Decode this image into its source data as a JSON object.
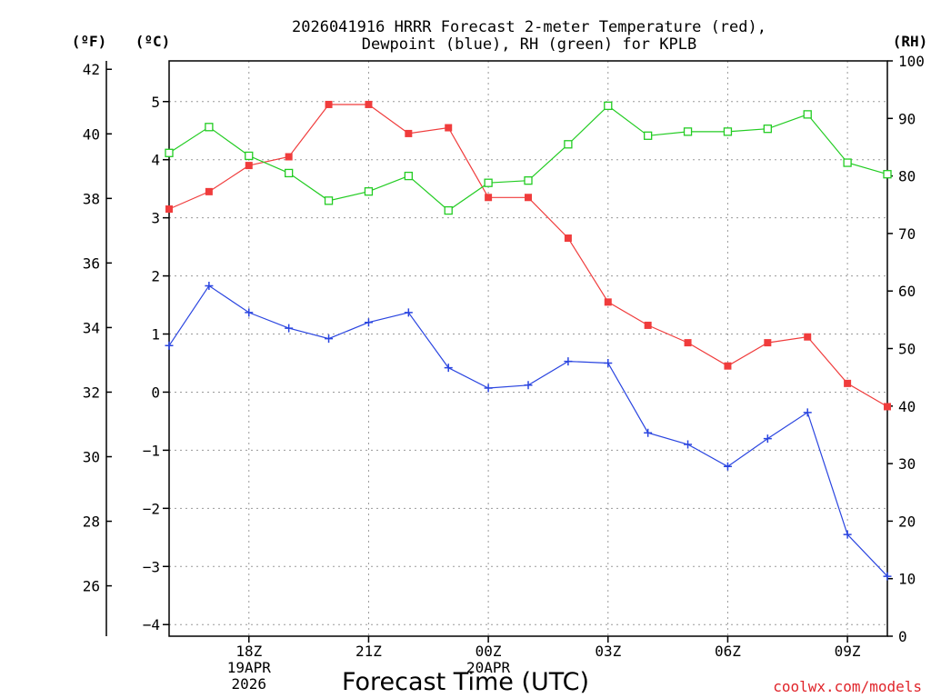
{
  "chart_data": {
    "type": "line",
    "title_line1": "2026041916 HRRR Forecast 2-meter Temperature (red),",
    "title_line2": "Dewpoint (blue), RH (green) for KPLB",
    "xlabel": "Forecast Time (UTC)",
    "credit": "coolwx.com/models",
    "left_unit_f": "(ºF)",
    "left_unit_c": "(ºC)",
    "right_unit": "(RH)",
    "x_hours": [
      16,
      17,
      18,
      19,
      20,
      21,
      22,
      23,
      24,
      25,
      26,
      27,
      28,
      29,
      30,
      31,
      32,
      33,
      34
    ],
    "x_ticks": [
      {
        "hour": 18,
        "label": "18Z",
        "date": "19APR",
        "year": "2026"
      },
      {
        "hour": 21,
        "label": "21Z",
        "date": "",
        "year": ""
      },
      {
        "hour": 24,
        "label": "00Z",
        "date": "20APR",
        "year": ""
      },
      {
        "hour": 27,
        "label": "03Z",
        "date": "",
        "year": ""
      },
      {
        "hour": 30,
        "label": "06Z",
        "date": "",
        "year": ""
      },
      {
        "hour": 33,
        "label": "09Z",
        "date": "",
        "year": ""
      }
    ],
    "xlim": [
      16,
      34
    ],
    "celsius_ylim": [
      -4.2,
      5.7
    ],
    "celsius_ticks": [
      -4,
      -3,
      -2,
      -1,
      0,
      1,
      2,
      3,
      4,
      5
    ],
    "fahrenheit_ticks": [
      26,
      28,
      30,
      32,
      34,
      36,
      38,
      40,
      42
    ],
    "rh_ylim": [
      0,
      100
    ],
    "rh_ticks": [
      0,
      10,
      20,
      30,
      40,
      50,
      60,
      70,
      80,
      90,
      100
    ],
    "series": [
      {
        "name": "Temperature",
        "color": "#f03c3c",
        "axis": "celsius",
        "marker": "filled-square",
        "values": [
          3.15,
          3.45,
          3.9,
          4.05,
          4.95,
          4.95,
          4.45,
          4.55,
          3.35,
          3.35,
          2.65,
          1.55,
          1.15,
          0.85,
          0.45,
          0.85,
          0.95,
          0.15,
          -0.25
        ]
      },
      {
        "name": "Dewpoint",
        "color": "#2a45e0",
        "axis": "celsius",
        "marker": "plus",
        "values": [
          0.8,
          1.83,
          1.37,
          1.1,
          0.92,
          1.2,
          1.37,
          0.42,
          0.07,
          0.12,
          0.53,
          0.5,
          -0.7,
          -0.9,
          -1.28,
          -0.8,
          -0.35,
          -2.45,
          -3.17
        ]
      },
      {
        "name": "RH",
        "color": "#22cc22",
        "axis": "rh",
        "marker": "open-square",
        "values": [
          84,
          88.5,
          83.5,
          80.5,
          75.7,
          77.3,
          80,
          74,
          78.8,
          79.2,
          85.5,
          92.2,
          87,
          87.7,
          87.7,
          88.2,
          90.7,
          82.3,
          80.3
        ]
      }
    ]
  }
}
